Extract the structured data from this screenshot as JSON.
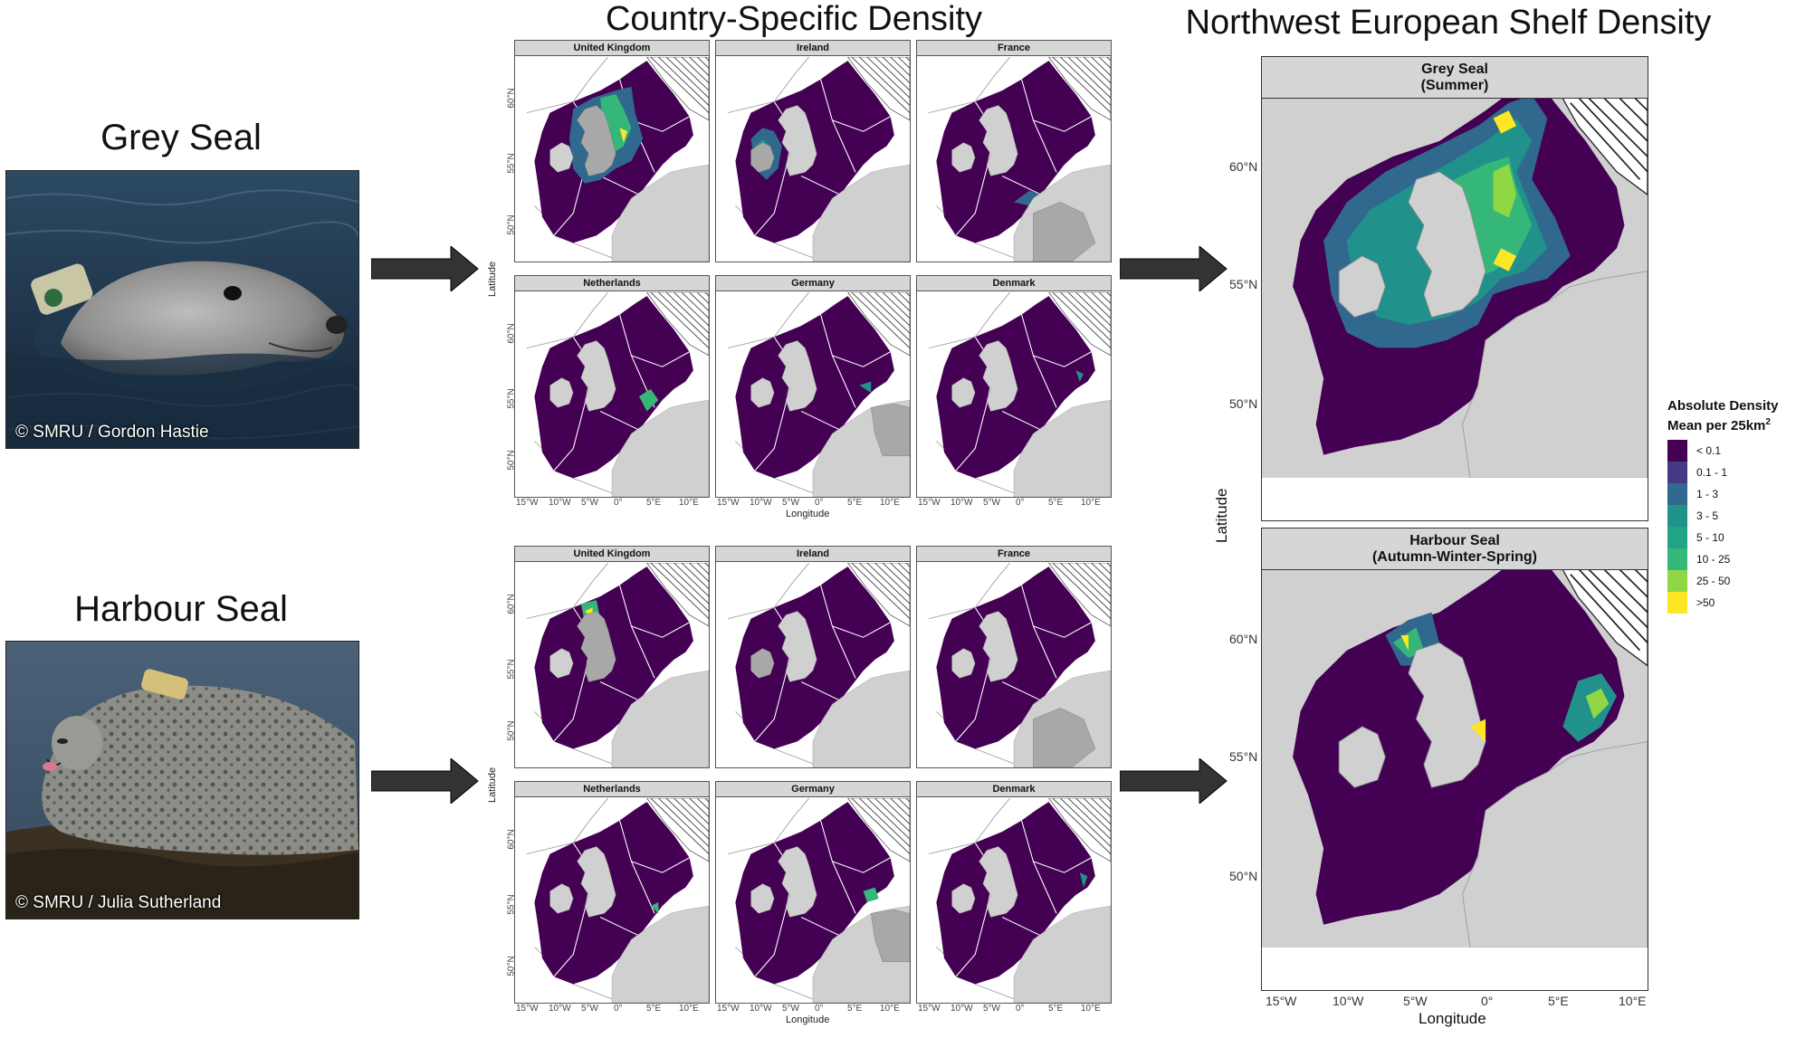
{
  "species": {
    "grey": {
      "title": "Grey Seal",
      "credit": "© SMRU / Gordon Hastie"
    },
    "harbour": {
      "title": "Harbour Seal",
      "credit": "© SMRU / Julia Sutherland"
    }
  },
  "titles": {
    "country": "Country-Specific Density",
    "shelf": "Northwest European Shelf Density"
  },
  "country_panels": {
    "grey": [
      "United Kingdom",
      "Ireland",
      "France",
      "Netherlands",
      "Germany",
      "Denmark"
    ],
    "harbour": [
      "United Kingdom",
      "Ireland",
      "France",
      "Netherlands",
      "Germany",
      "Denmark"
    ]
  },
  "small_axes": {
    "y_ticks": [
      "60°N",
      "55°N",
      "50°N"
    ],
    "x_ticks": [
      "15°W",
      "10°W",
      "5°W",
      "0°",
      "5°E",
      "10°E"
    ],
    "y_title": "Latitude",
    "x_title": "Longitude"
  },
  "shelf_panels": {
    "grey": {
      "line1": "Grey Seal",
      "line2": "(Summer)"
    },
    "harbour": {
      "line1": "Harbour Seal",
      "line2": "(Autumn-Winter-Spring)"
    }
  },
  "big_axes": {
    "y_ticks": [
      "60°N",
      "55°N",
      "50°N"
    ],
    "x_ticks": [
      "15°W",
      "10°W",
      "5°W",
      "0°",
      "5°E",
      "10°E"
    ],
    "y_title": "Latitude",
    "x_title": "Longitude"
  },
  "legend": {
    "title_line1": "Absolute Density",
    "title_line2": "Mean per 25km",
    "title_sup": "2",
    "items": [
      {
        "label": "< 0.1",
        "color": "#440154"
      },
      {
        "label": "0.1 - 1",
        "color": "#443a83"
      },
      {
        "label": "1 - 3",
        "color": "#31688e"
      },
      {
        "label": "3 - 5",
        "color": "#21918c"
      },
      {
        "label": "5 - 10",
        "color": "#20a486"
      },
      {
        "label": "10 - 25",
        "color": "#35b779"
      },
      {
        "label": "25 - 50",
        "color": "#8fd744"
      },
      {
        "label": ">50",
        "color": "#fde725"
      }
    ]
  },
  "colors": {
    "sea": "#440154",
    "land": "#d0d0d0",
    "land_dark": "#a8a8a8",
    "strip": "#d6d6d6",
    "arrow": "#333333"
  }
}
